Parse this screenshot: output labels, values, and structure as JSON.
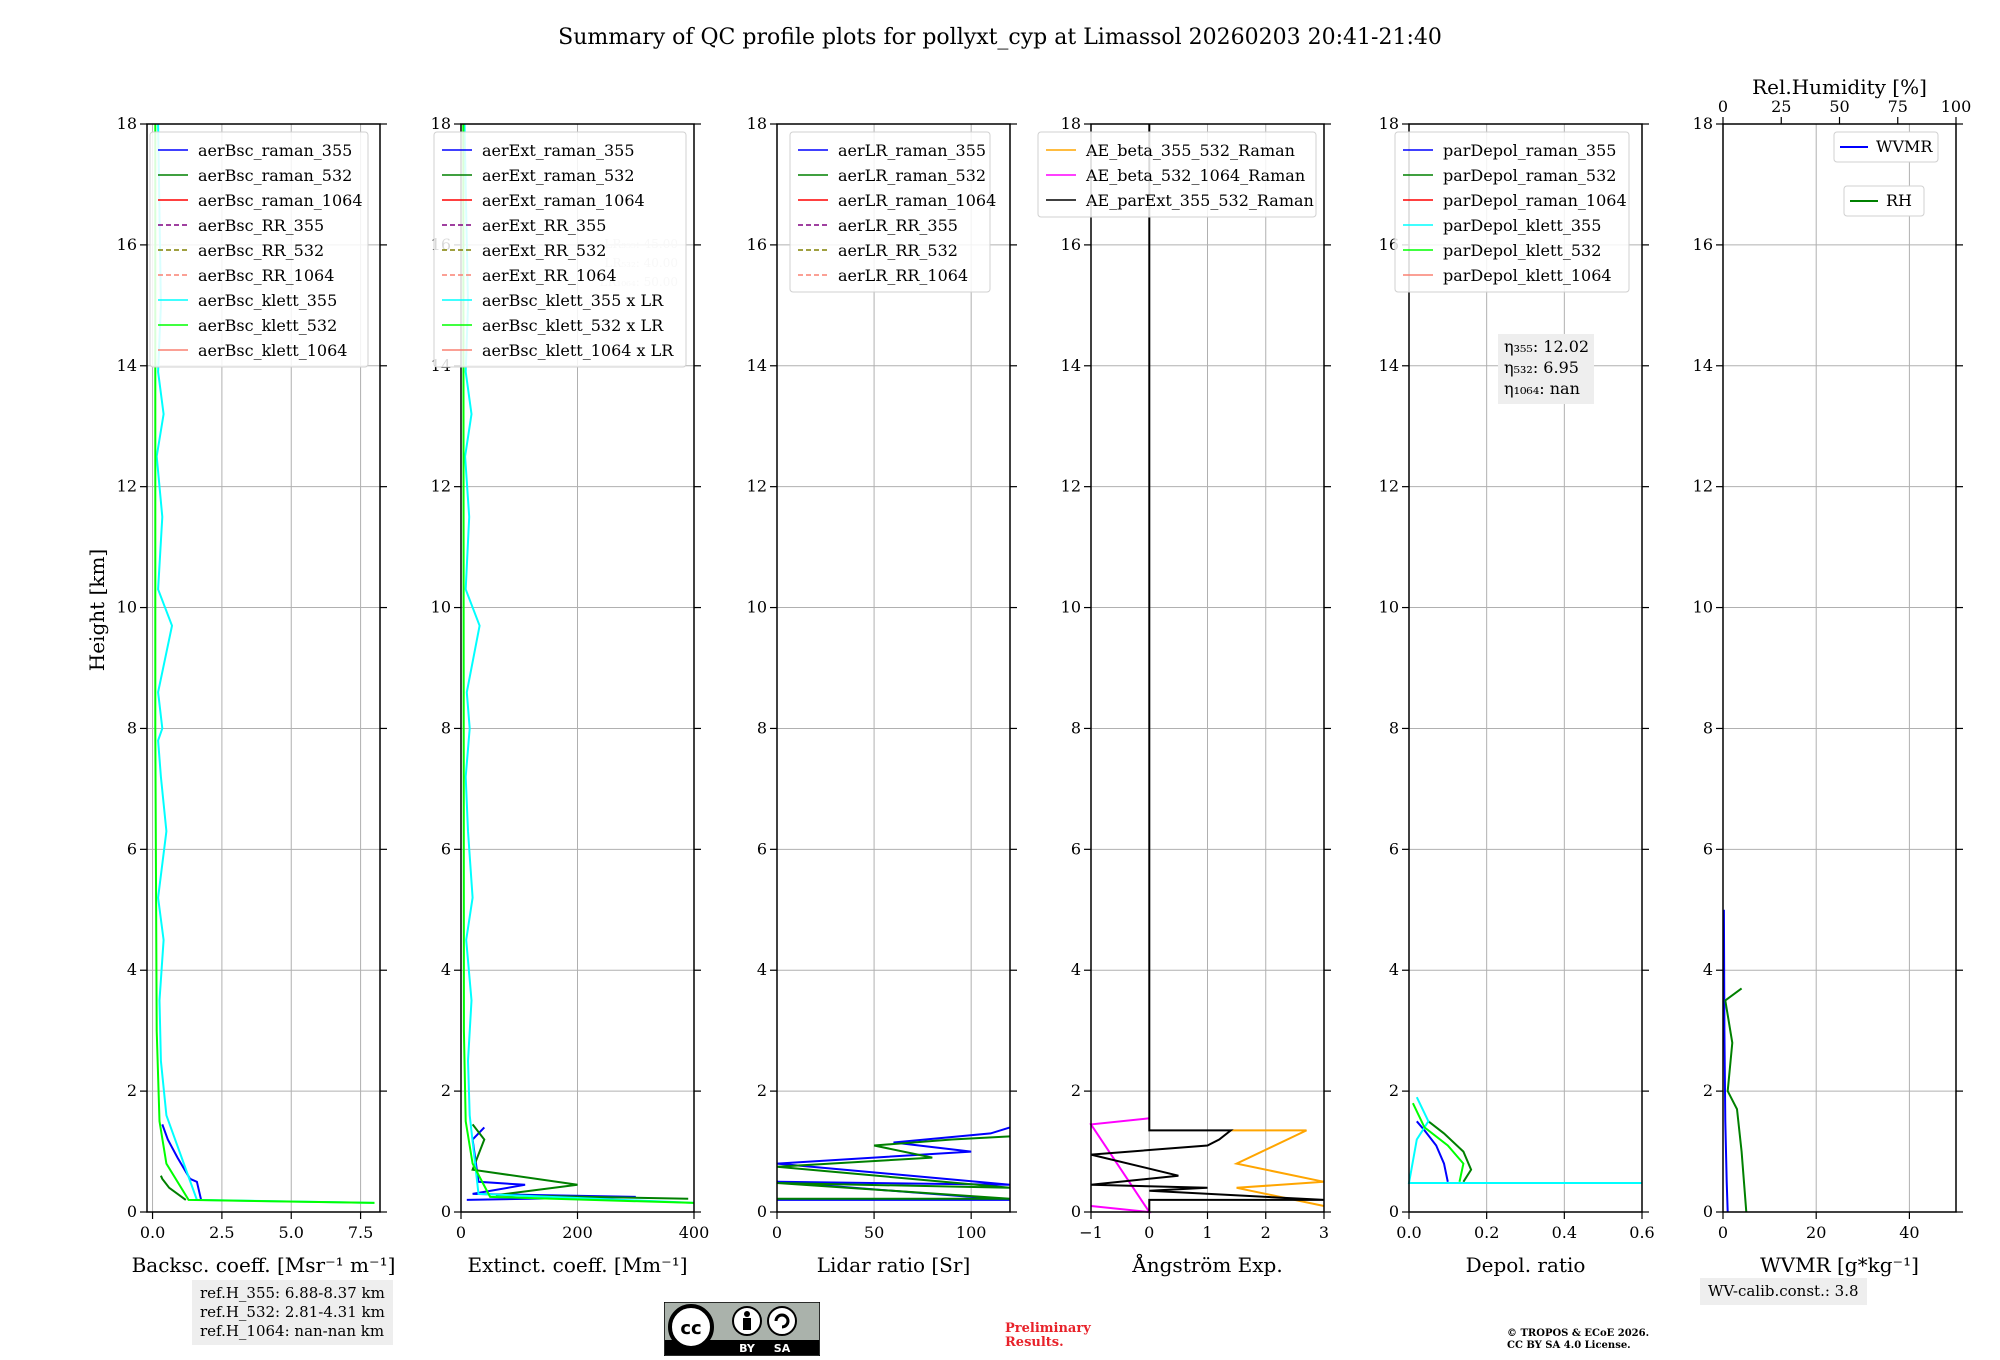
{
  "figure": {
    "title": "Summary of QC profile plots for pollyxt_cyp at Limassol 20260203 20:41-21:40",
    "ylabel": "Height [km]",
    "ref_heights": [
      "ref.H_355: 6.88-8.37 km",
      "ref.H_532: 2.81-4.31 km",
      "ref.H_1064: nan-nan km"
    ],
    "wv_calib": "WV-calib.const.: 3.8",
    "cc_badge": {
      "top": "cc",
      "by": "BY",
      "sa": "SA"
    },
    "preliminary": [
      "Preliminary",
      "Results."
    ],
    "copyright": [
      "© TROPOS & ECoE 2026.",
      "CC BY SA 4.0 License."
    ]
  },
  "chart_data": [
    {
      "type": "line",
      "id": "bsc",
      "xlabel": "Backsc. coeff. [Msr⁻¹ m⁻¹]",
      "xlim": [
        -0.2,
        8.2
      ],
      "ylim": [
        0,
        18
      ],
      "xticks": [
        0,
        2.5,
        5,
        7.5
      ],
      "xticklabels": [
        "0.0",
        "2.5",
        "5.0",
        "7.5"
      ],
      "yticks": [
        0,
        2,
        4,
        6,
        8,
        10,
        12,
        14,
        16,
        18
      ],
      "legend": [
        {
          "label": "aerBsc_raman_355",
          "color": "#0000ff",
          "dash": false
        },
        {
          "label": "aerBsc_raman_532",
          "color": "#008000",
          "dash": false
        },
        {
          "label": "aerBsc_raman_1064",
          "color": "#ff0000",
          "dash": false
        },
        {
          "label": "aerBsc_RR_355",
          "color": "#800080",
          "dash": true
        },
        {
          "label": "aerBsc_RR_532",
          "color": "#808000",
          "dash": true
        },
        {
          "label": "aerBsc_RR_1064",
          "color": "#fa8072",
          "dash": true
        },
        {
          "label": "aerBsc_klett_355",
          "color": "#00ffff",
          "dash": false
        },
        {
          "label": "aerBsc_klett_532",
          "color": "#00ff00",
          "dash": false
        },
        {
          "label": "aerBsc_klett_1064",
          "color": "#fa8072",
          "dash": false
        }
      ],
      "series": [
        {
          "name": "aerBsc_raman_355",
          "color": "#0000ff",
          "x": [
            1.75,
            1.6,
            1.35,
            0.9,
            0.55,
            0.35
          ],
          "y": [
            0.2,
            0.5,
            0.55,
            0.9,
            1.2,
            1.45
          ]
        },
        {
          "name": "aerBsc_raman_532",
          "color": "#008000",
          "x": [
            1.2,
            0.6,
            0.35,
            0.3
          ],
          "y": [
            0.2,
            0.4,
            0.55,
            0.6
          ]
        },
        {
          "name": "aerBsc_klett_355",
          "color": "#00ffff",
          "x": [
            8.0,
            1.6,
            0.5,
            0.3,
            0.25,
            0.4,
            0.2,
            0.5,
            0.3,
            0.2,
            0.35,
            0.2,
            0.7,
            0.2,
            0.35,
            0.15,
            0.4,
            0.2,
            0.3,
            0.2
          ],
          "y": [
            0.15,
            0.2,
            1.6,
            2.5,
            3.5,
            4.5,
            5.2,
            6.3,
            7.2,
            7.8,
            8.0,
            8.6,
            9.7,
            10.3,
            11.5,
            12.5,
            13.2,
            13.9,
            15.0,
            18.0
          ]
        },
        {
          "name": "aerBsc_klett_532",
          "color": "#00ff00",
          "x": [
            8.0,
            1.3,
            0.5,
            0.25,
            0.15,
            0.1,
            0.1
          ],
          "y": [
            0.15,
            0.2,
            0.8,
            1.5,
            3.0,
            8.0,
            18.0
          ]
        }
      ]
    },
    {
      "type": "line",
      "id": "ext",
      "xlabel": "Extinct. coeff. [Mm⁻¹]",
      "xlim": [
        0,
        400
      ],
      "ylim": [
        0,
        18
      ],
      "xticks": [
        0,
        200,
        400
      ],
      "xticklabels": [
        "0",
        "200",
        "400"
      ],
      "yticks": [
        0,
        2,
        4,
        6,
        8,
        10,
        12,
        14,
        16,
        18
      ],
      "lr_notes": [
        "LR₃₅₅: 45.00",
        "LR₅₃₂: 40.00",
        "LR₁₀₆₄: 50.00"
      ],
      "legend": [
        {
          "label": "aerExt_raman_355",
          "color": "#0000ff",
          "dash": false
        },
        {
          "label": "aerExt_raman_532",
          "color": "#008000",
          "dash": false
        },
        {
          "label": "aerExt_raman_1064",
          "color": "#ff0000",
          "dash": false
        },
        {
          "label": "aerExt_RR_355",
          "color": "#800080",
          "dash": true
        },
        {
          "label": "aerExt_RR_532",
          "color": "#808000",
          "dash": true
        },
        {
          "label": "aerExt_RR_1064",
          "color": "#fa8072",
          "dash": true
        },
        {
          "label": "aerBsc_klett_355 x LR",
          "color": "#00ffff",
          "dash": false
        },
        {
          "label": "aerBsc_klett_532 x LR",
          "color": "#00ff00",
          "dash": false
        },
        {
          "label": "aerBsc_klett_1064 x LR",
          "color": "#fa8072",
          "dash": false
        }
      ],
      "series": [
        {
          "name": "aerExt_raman_355",
          "color": "#0000ff",
          "x": [
            10,
            300,
            20,
            110,
            30,
            20,
            40
          ],
          "y": [
            0.2,
            0.25,
            0.3,
            0.45,
            0.5,
            1.2,
            1.4
          ]
        },
        {
          "name": "aerExt_raman_532",
          "color": "#008000",
          "x": [
            390,
            60,
            200,
            20,
            40,
            20
          ],
          "y": [
            0.22,
            0.28,
            0.45,
            0.7,
            1.2,
            1.45
          ]
        },
        {
          "name": "aerBsc_klett_355 x LR",
          "color": "#00ffff",
          "x": [
            400,
            30,
            15,
            12,
            18,
            9,
            20,
            12,
            8,
            15,
            10,
            32,
            8,
            14,
            7,
            18,
            8,
            12,
            6
          ],
          "y": [
            0.15,
            0.3,
            1.6,
            2.5,
            3.5,
            4.5,
            5.2,
            6.3,
            7.2,
            8.0,
            8.6,
            9.7,
            10.3,
            11.5,
            12.5,
            13.2,
            13.9,
            15.0,
            18.0
          ]
        },
        {
          "name": "aerBsc_klett_532 x LR",
          "color": "#00ff00",
          "x": [
            400,
            50,
            20,
            8,
            5,
            4
          ],
          "y": [
            0.15,
            0.25,
            0.8,
            1.5,
            3.0,
            18.0
          ]
        }
      ]
    },
    {
      "type": "line",
      "id": "lr",
      "xlabel": "Lidar ratio [Sr]",
      "xlim": [
        0,
        120
      ],
      "ylim": [
        0,
        18
      ],
      "xticks": [
        0,
        50,
        100
      ],
      "xticklabels": [
        "0",
        "50",
        "100"
      ],
      "yticks": [
        0,
        2,
        4,
        6,
        8,
        10,
        12,
        14,
        16,
        18
      ],
      "legend": [
        {
          "label": "aerLR_raman_355",
          "color": "#0000ff",
          "dash": false
        },
        {
          "label": "aerLR_raman_532",
          "color": "#008000",
          "dash": false
        },
        {
          "label": "aerLR_raman_1064",
          "color": "#ff0000",
          "dash": false
        },
        {
          "label": "aerLR_RR_355",
          "color": "#800080",
          "dash": true
        },
        {
          "label": "aerLR_RR_532",
          "color": "#808000",
          "dash": true
        },
        {
          "label": "aerLR_RR_1064",
          "color": "#fa8072",
          "dash": true
        }
      ],
      "series": [
        {
          "name": "aerLR_raman_355",
          "color": "#0000ff",
          "x": [
            0,
            120,
            0,
            120,
            0,
            100,
            60,
            110,
            120
          ],
          "y": [
            0.2,
            0.2,
            0.5,
            0.45,
            0.8,
            1.0,
            1.15,
            1.3,
            1.4
          ]
        },
        {
          "name": "aerLR_raman_532",
          "color": "#008000",
          "x": [
            0,
            120,
            0,
            120,
            0,
            80,
            50,
            90,
            120
          ],
          "y": [
            0.22,
            0.22,
            0.48,
            0.4,
            0.75,
            0.9,
            1.1,
            1.2,
            1.25
          ]
        }
      ]
    },
    {
      "type": "line",
      "id": "ae",
      "xlabel": "Ångström Exp.",
      "xlim": [
        -1,
        3
      ],
      "ylim": [
        0,
        18
      ],
      "xticks": [
        -1,
        0,
        1,
        2,
        3
      ],
      "xticklabels": [
        "−1",
        "0",
        "1",
        "2",
        "3"
      ],
      "yticks": [
        0,
        2,
        4,
        6,
        8,
        10,
        12,
        14,
        16,
        18
      ],
      "legend": [
        {
          "label": "AE_beta_355_532_Raman",
          "color": "#ffa500",
          "dash": false
        },
        {
          "label": "AE_beta_532_1064_Raman",
          "color": "#ff00ff",
          "dash": false
        },
        {
          "label": "AE_parExt_355_532_Raman",
          "color": "#000000",
          "dash": false
        }
      ],
      "series": [
        {
          "name": "AE_beta_355_532_Raman",
          "color": "#ffa500",
          "x": [
            3.0,
            1.5,
            3.0,
            1.5,
            2.7,
            1.4
          ],
          "y": [
            0.1,
            0.4,
            0.5,
            0.8,
            1.35,
            1.35
          ]
        },
        {
          "name": "AE_beta_532_1064_Raman",
          "color": "#ff00ff",
          "x": [
            -1.0,
            0.0,
            -1.0,
            0.0
          ],
          "y": [
            0.1,
            0.0,
            1.45,
            1.55
          ]
        },
        {
          "name": "AE_parExt_355_532_Raman",
          "color": "#000000",
          "x": [
            0.0,
            0.0,
            3.0,
            0.0,
            1.0,
            -1.0,
            0.5,
            -1.0,
            1.0,
            1.2,
            1.4,
            0.0,
            0.0
          ],
          "y": [
            0.0,
            0.2,
            0.2,
            0.35,
            0.4,
            0.45,
            0.6,
            0.95,
            1.1,
            1.2,
            1.35,
            1.35,
            18.0
          ]
        }
      ]
    },
    {
      "type": "line",
      "id": "depol",
      "xlabel": "Depol. ratio",
      "xlim": [
        0,
        0.6
      ],
      "ylim": [
        0,
        18
      ],
      "xticks": [
        0,
        0.2,
        0.4,
        0.6
      ],
      "xticklabels": [
        "0.0",
        "0.2",
        "0.4",
        "0.6"
      ],
      "yticks": [
        0,
        2,
        4,
        6,
        8,
        10,
        12,
        14,
        16,
        18
      ],
      "eta_notes": [
        "η₃₅₅: 12.02",
        "η₅₃₂: 6.95",
        "η₁₀₆₄: nan"
      ],
      "legend": [
        {
          "label": "parDepol_raman_355",
          "color": "#0000ff",
          "dash": false
        },
        {
          "label": "parDepol_raman_532",
          "color": "#008000",
          "dash": false
        },
        {
          "label": "parDepol_raman_1064",
          "color": "#ff0000",
          "dash": false
        },
        {
          "label": "parDepol_klett_355",
          "color": "#00ffff",
          "dash": false
        },
        {
          "label": "parDepol_klett_532",
          "color": "#00ff00",
          "dash": false
        },
        {
          "label": "parDepol_klett_1064",
          "color": "#fa8072",
          "dash": false
        }
      ],
      "series": [
        {
          "name": "parDepol_raman_355",
          "color": "#0000ff",
          "x": [
            0.1,
            0.09,
            0.07,
            0.04,
            0.02
          ],
          "y": [
            0.5,
            0.8,
            1.1,
            1.35,
            1.5
          ]
        },
        {
          "name": "parDepol_raman_532",
          "color": "#008000",
          "x": [
            0.14,
            0.16,
            0.14,
            0.09,
            0.05
          ],
          "y": [
            0.5,
            0.7,
            1.0,
            1.3,
            1.5
          ]
        },
        {
          "name": "parDepol_klett_355",
          "color": "#00ffff",
          "x": [
            0.6,
            0.0,
            0.02,
            0.05,
            0.02
          ],
          "y": [
            0.48,
            0.48,
            1.2,
            1.5,
            1.9
          ]
        },
        {
          "name": "parDepol_klett_532",
          "color": "#00ff00",
          "x": [
            0.13,
            0.14,
            0.1,
            0.04,
            0.01
          ],
          "y": [
            0.5,
            0.8,
            1.1,
            1.4,
            1.8
          ]
        }
      ]
    },
    {
      "type": "line",
      "id": "wv",
      "xlabel": "WVMR [g*kg⁻¹]",
      "top_xlabel": "Rel.Humidity [%]",
      "xlim": [
        0,
        50
      ],
      "ylim": [
        0,
        18
      ],
      "xticks": [
        0,
        20,
        40
      ],
      "xticklabels": [
        "0",
        "20",
        "40"
      ],
      "top_xlim": [
        0,
        100
      ],
      "top_xticks": [
        0,
        25,
        50,
        75,
        100
      ],
      "top_xticklabels": [
        "0",
        "25",
        "50",
        "75",
        "100"
      ],
      "yticks": [
        0,
        2,
        4,
        6,
        8,
        10,
        12,
        14,
        16,
        18
      ],
      "legend": [
        {
          "label": "WVMR",
          "color": "#0000ff",
          "dash": false
        },
        {
          "label": "RH",
          "color": "#008000",
          "dash": false
        }
      ],
      "series": [
        {
          "name": "WVMR",
          "color": "#0000ff",
          "axis": "bottom",
          "x": [
            1.0,
            0.8,
            0.5,
            0.3,
            0.2
          ],
          "y": [
            0.0,
            0.5,
            1.5,
            3.0,
            5.0
          ]
        },
        {
          "name": "RH",
          "color": "#008000",
          "axis": "top",
          "x": [
            10,
            8,
            6,
            2,
            4,
            1,
            8
          ],
          "y": [
            0.0,
            1.0,
            1.7,
            2.0,
            2.8,
            3.5,
            3.7
          ]
        }
      ]
    }
  ]
}
